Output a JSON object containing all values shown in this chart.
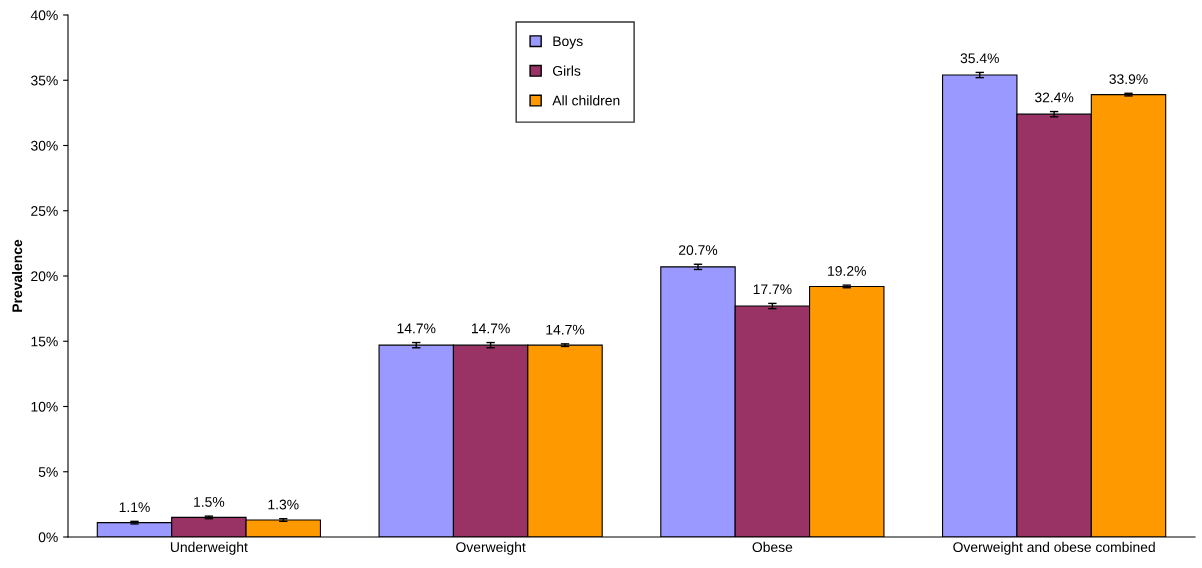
{
  "chart_data": {
    "type": "bar",
    "ylabel": "Prevalence",
    "categories": [
      "Underweight",
      "Overweight",
      "Obese",
      "Overweight and obese combined"
    ],
    "series": [
      {
        "name": "Boys",
        "color": "#9999ff",
        "values": [
          1.1,
          14.7,
          20.7,
          35.4
        ],
        "value_labels": [
          "1.1%",
          "14.7%",
          "20.7%",
          "35.4%"
        ],
        "errors": [
          0.1,
          0.2,
          0.2,
          0.2
        ]
      },
      {
        "name": "Girls",
        "color": "#993366",
        "values": [
          1.5,
          14.7,
          17.7,
          32.4
        ],
        "value_labels": [
          "1.5%",
          "14.7%",
          "17.7%",
          "32.4%"
        ],
        "errors": [
          0.1,
          0.2,
          0.2,
          0.2
        ]
      },
      {
        "name": "All children",
        "color": "#ff9900",
        "values": [
          1.3,
          14.7,
          19.2,
          33.9
        ],
        "value_labels": [
          "1.3%",
          "14.7%",
          "19.2%",
          "33.9%"
        ],
        "errors": [
          0.1,
          0.1,
          0.1,
          0.1
        ]
      }
    ],
    "ylim": [
      0,
      40
    ],
    "yticks": [
      {
        "value": 0,
        "label": "0%"
      },
      {
        "value": 5,
        "label": "5%"
      },
      {
        "value": 10,
        "label": "10%"
      },
      {
        "value": 15,
        "label": "15%"
      },
      {
        "value": 20,
        "label": "20%"
      },
      {
        "value": 25,
        "label": "25%"
      },
      {
        "value": 30,
        "label": "30%"
      },
      {
        "value": 35,
        "label": "35%"
      },
      {
        "value": 40,
        "label": "40%"
      }
    ],
    "grid": false,
    "legend": "top"
  }
}
